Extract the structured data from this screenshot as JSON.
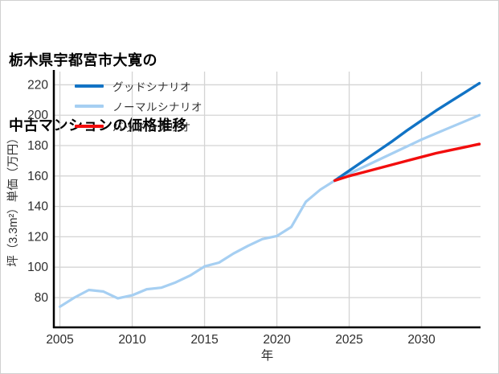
{
  "title": {
    "line1": "栃木県宇都宮市大寛の",
    "line2": "中古マンションの価格推移"
  },
  "colors": {
    "background": "#ffffff",
    "canvas_border": "#d0d0d0",
    "grid": "#d4d4d4",
    "axis": "#000000",
    "tick_label": "#2e2e2e",
    "axis_label": "#2e2e2e",
    "legend_text": "#333333",
    "good": "#1173c5",
    "normal": "#a6cff2",
    "bad": "#f20d0d"
  },
  "chart_data": {
    "type": "line",
    "title": "栃木県宇都宮市大寛の中古マンションの価格推移",
    "xlabel": "年",
    "ylabel": "坪（3.3m²）単価（万円）",
    "xlim": [
      2004.58,
      2034.08
    ],
    "ylim": [
      60.4,
      228.7
    ],
    "xticks": [
      2005,
      2010,
      2015,
      2020,
      2025,
      2030
    ],
    "yticks": [
      80,
      100,
      120,
      140,
      160,
      180,
      200,
      220
    ],
    "grid": true,
    "legend_position": "top-left",
    "series": [
      {
        "name": "グッドシナリオ",
        "color": "#1173c5",
        "width": 3.4,
        "x": [
          2024,
          2025,
          2026,
          2027,
          2028,
          2029,
          2030,
          2031,
          2032,
          2033,
          2034
        ],
        "values": [
          157,
          163.5,
          170,
          176.5,
          183,
          190,
          196.5,
          203,
          209,
          215,
          221
        ]
      },
      {
        "name": "ノーマルシナリオ",
        "color": "#a6cff2",
        "width": 3.2,
        "x": [
          2005,
          2006,
          2007,
          2008,
          2009,
          2010,
          2011,
          2012,
          2013,
          2014,
          2015,
          2016,
          2017,
          2018,
          2019,
          2020,
          2021,
          2022,
          2023,
          2024,
          2025,
          2026,
          2027,
          2028,
          2029,
          2030,
          2031,
          2032,
          2033,
          2034
        ],
        "values": [
          74,
          80,
          85,
          84,
          79.5,
          81.5,
          85.5,
          86.5,
          90,
          94.5,
          100.5,
          103,
          109,
          114,
          118.5,
          120.5,
          126.5,
          143,
          151,
          157,
          161.5,
          166,
          170.5,
          175,
          179.5,
          184,
          188,
          192,
          196,
          200
        ]
      },
      {
        "name": "バッドシナリオ",
        "color": "#f20d0d",
        "width": 3.4,
        "x": [
          2024,
          2025,
          2026,
          2027,
          2028,
          2029,
          2030,
          2031,
          2032,
          2033,
          2034
        ],
        "values": [
          157,
          160,
          162.5,
          165,
          167.5,
          170,
          172.5,
          175,
          177,
          179,
          181
        ]
      }
    ]
  }
}
